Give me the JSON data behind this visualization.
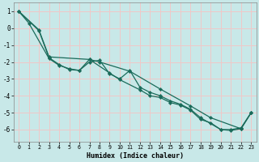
{
  "xlabel": "Humidex (Indice chaleur)",
  "bg_color": "#c8e8e8",
  "grid_color": "#f0c8c8",
  "line_color": "#1a6b5a",
  "xlim": [
    -0.5,
    23.5
  ],
  "ylim": [
    -6.7,
    1.5
  ],
  "yticks": [
    1,
    0,
    -1,
    -2,
    -3,
    -4,
    -5,
    -6
  ],
  "xticks": [
    0,
    1,
    2,
    3,
    4,
    5,
    6,
    7,
    8,
    9,
    10,
    11,
    12,
    13,
    14,
    15,
    16,
    17,
    18,
    19,
    20,
    21,
    22,
    23
  ],
  "series": [
    {
      "x": [
        0,
        2,
        3,
        7,
        8,
        11,
        14,
        17,
        19,
        22,
        23
      ],
      "y": [
        1.0,
        -0.1,
        -1.7,
        -1.85,
        -2.0,
        -2.55,
        -3.6,
        -4.6,
        -5.3,
        -5.95,
        -5.0
      ]
    },
    {
      "x": [
        0,
        1,
        3,
        4,
        5,
        6,
        7,
        8,
        9,
        10,
        11,
        12,
        13,
        14,
        15,
        16,
        17,
        18,
        20,
        21,
        22,
        23
      ],
      "y": [
        1.0,
        0.3,
        -1.8,
        -2.2,
        -2.4,
        -2.5,
        -2.0,
        -1.9,
        -2.7,
        -3.0,
        -2.5,
        -3.5,
        -3.8,
        -4.0,
        -4.3,
        -4.5,
        -4.8,
        -5.3,
        -6.0,
        -6.0,
        -5.9,
        -5.0
      ]
    },
    {
      "x": [
        0,
        2,
        3,
        4,
        5,
        6,
        7,
        9,
        10,
        12,
        13,
        14,
        15,
        16,
        17,
        18,
        19,
        20,
        21,
        22,
        23
      ],
      "y": [
        1.0,
        -0.15,
        -1.75,
        -2.15,
        -2.45,
        -2.5,
        -1.85,
        -2.65,
        -3.05,
        -3.65,
        -4.0,
        -4.1,
        -4.4,
        -4.55,
        -4.85,
        -5.4,
        -5.6,
        -6.0,
        -6.05,
        -5.95,
        -5.0
      ]
    }
  ]
}
